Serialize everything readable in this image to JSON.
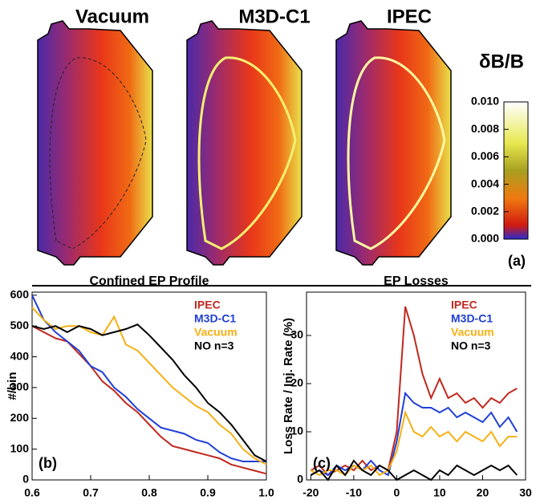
{
  "chart_data": [
    {
      "type": "colormap",
      "titles": [
        "Vacuum",
        "M3D-C1",
        "IPEC"
      ],
      "colorbar_title": "δB/B",
      "clim": [
        0,
        0.01
      ],
      "cticks": [
        {
          "value": 0,
          "label": "0.000"
        },
        {
          "value": 0.002,
          "label": "0.002"
        },
        {
          "value": 0.004,
          "label": "0.004"
        },
        {
          "value": 0.006,
          "label": "0.006"
        },
        {
          "value": 0.008,
          "label": "0.008"
        },
        {
          "value": 0.01,
          "label": "0.010"
        }
      ],
      "panel_label": "(a)"
    },
    {
      "type": "line",
      "title": "Confined EP Profile",
      "ylabel": "#/bin",
      "panel_label": "(b)",
      "x": [
        0.6,
        0.62,
        0.64,
        0.66,
        0.68,
        0.7,
        0.72,
        0.74,
        0.76,
        0.78,
        0.8,
        0.82,
        0.84,
        0.86,
        0.88,
        0.9,
        0.92,
        0.94,
        0.96,
        0.98,
        1.0
      ],
      "series": [
        {
          "name": "IPEC",
          "color": "#c0281e",
          "values": [
            500,
            480,
            460,
            450,
            410,
            370,
            320,
            290,
            250,
            220,
            180,
            140,
            110,
            100,
            90,
            80,
            70,
            50,
            40,
            30,
            20
          ]
        },
        {
          "name": "M3D-C1",
          "color": "#1f3fd6",
          "values": [
            600,
            520,
            480,
            450,
            420,
            370,
            350,
            300,
            270,
            230,
            200,
            170,
            160,
            150,
            130,
            120,
            90,
            70,
            60,
            60,
            60
          ]
        },
        {
          "name": "Vacuum",
          "color": "#f5b014",
          "values": [
            560,
            520,
            490,
            500,
            500,
            480,
            470,
            530,
            440,
            420,
            380,
            340,
            300,
            270,
            240,
            220,
            180,
            150,
            100,
            70,
            50
          ]
        },
        {
          "name": "NO n=3",
          "color": "#000000",
          "values": [
            500,
            490,
            500,
            480,
            500,
            490,
            470,
            480,
            490,
            505,
            470,
            430,
            390,
            340,
            300,
            250,
            220,
            180,
            130,
            80,
            60
          ]
        }
      ],
      "xlim": [
        0.6,
        1.0
      ],
      "xticks": [
        0.6,
        0.7,
        0.8,
        0.9,
        {
          "value": 1.0,
          "label": "1.0"
        }
      ],
      "ylim": [
        0,
        610
      ],
      "yticks": [
        0,
        100,
        200,
        300,
        400,
        500,
        600
      ]
    },
    {
      "type": "line",
      "title": "EP Losses",
      "ylabel": "Loss Rate / Inj. Rate (%)",
      "panel_label": "(c)",
      "x": [
        -20,
        -18,
        -16,
        -14,
        -12,
        -10,
        -8,
        -6,
        -4,
        -2,
        0,
        2,
        4,
        6,
        8,
        10,
        12,
        14,
        16,
        18,
        20,
        22,
        24,
        26,
        28
      ],
      "series": [
        {
          "name": "IPEC",
          "color": "#c0281e",
          "values": [
            2,
            3,
            1,
            2,
            3,
            2,
            4,
            2,
            3,
            2,
            10,
            36,
            30,
            22,
            17,
            21,
            17,
            18,
            16,
            17,
            15,
            17,
            16,
            18,
            19
          ]
        },
        {
          "name": "M3D-C1",
          "color": "#1f3fd6",
          "values": [
            1,
            2,
            1,
            3,
            2,
            3,
            2,
            4,
            2,
            1,
            8,
            18,
            16,
            15,
            15,
            14,
            15,
            13,
            14,
            13,
            12,
            14,
            11,
            13,
            10
          ]
        },
        {
          "name": "Vacuum",
          "color": "#f5b014",
          "values": [
            2,
            1,
            2,
            2,
            1,
            3,
            2,
            3,
            1,
            2,
            6,
            14,
            10,
            9,
            11,
            9,
            10,
            8,
            10,
            9,
            8,
            10,
            7,
            9,
            9
          ]
        },
        {
          "name": "NO n=3",
          "color": "#000000",
          "values": [
            1,
            2,
            0,
            3,
            1,
            4,
            2,
            1,
            3,
            2,
            0,
            1,
            2,
            1,
            0,
            2,
            1,
            3,
            2,
            1,
            2,
            3,
            2,
            3,
            1
          ]
        }
      ],
      "xlim": [
        -21,
        30
      ],
      "xticks": [
        -20,
        -10,
        0,
        10,
        20,
        30
      ],
      "ylim": [
        0,
        39
      ],
      "yticks": [
        0,
        10,
        20,
        30
      ]
    }
  ]
}
